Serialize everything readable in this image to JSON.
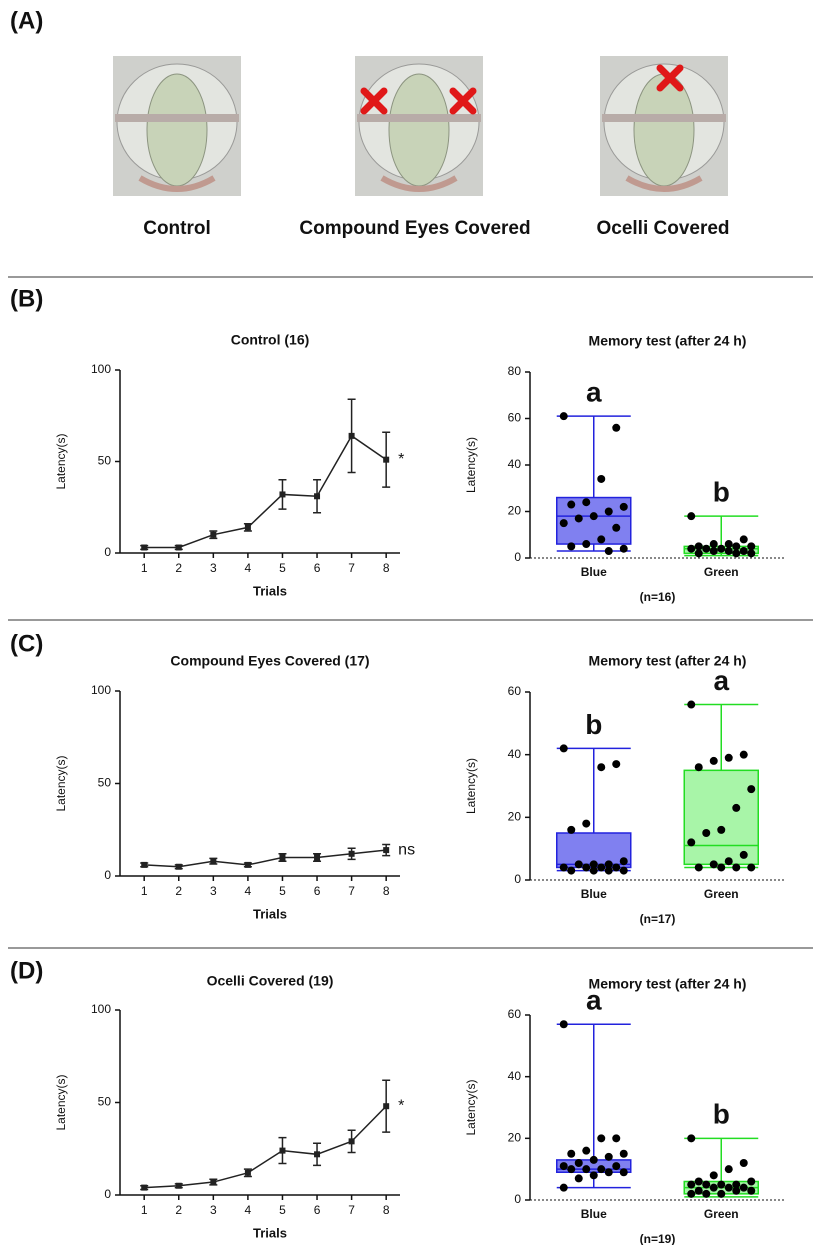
{
  "panel_labels": [
    "(A)",
    "(B)",
    "(C)",
    "(D)"
  ],
  "head_captions": [
    "Control",
    "Compound Eyes Covered",
    "Ocelli Covered"
  ],
  "chart_data": [
    {
      "type": "line",
      "title": "Control (16)",
      "xlabel": "Trials",
      "ylabel": "Latency(s)",
      "x": [
        1,
        2,
        3,
        4,
        5,
        6,
        7,
        8
      ],
      "xticks": [
        1,
        2,
        3,
        4,
        5,
        6,
        7,
        8
      ],
      "xlim": [
        0.3,
        8.4
      ],
      "ylim": [
        0,
        100
      ],
      "yticks": [
        0,
        50,
        100
      ],
      "series": [
        {
          "color": "#222222",
          "values": [
            3,
            3,
            10,
            14,
            32,
            31,
            64,
            51
          ],
          "errors": [
            1,
            1,
            2,
            2,
            8,
            9,
            20,
            15
          ]
        }
      ],
      "annotation": "*"
    },
    {
      "type": "box",
      "title": "Memory test (after 24 h)",
      "ylabel": "Latency(s)",
      "categories": [
        "Blue",
        "Green"
      ],
      "ylim": [
        0,
        80
      ],
      "yticks": [
        0,
        20,
        40,
        60,
        80
      ],
      "boxes": [
        {
          "color": "#2222dd",
          "fill": "#8080f0",
          "min": 3,
          "q1": 6,
          "median": 18,
          "q3": 26,
          "max": 61,
          "points": [
            61,
            56,
            34,
            24,
            23,
            22,
            20,
            18,
            17,
            15,
            13,
            8,
            6,
            5,
            4,
            3
          ]
        },
        {
          "color": "#22dd22",
          "fill": "#a8f5a8",
          "min": 1,
          "q1": 2,
          "median": 4,
          "q3": 5,
          "max": 18,
          "points": [
            18,
            8,
            6,
            6,
            5,
            5,
            5,
            4,
            4,
            4,
            3,
            3,
            3,
            2,
            2,
            2
          ]
        }
      ],
      "letters": [
        "a",
        "b"
      ],
      "note": "(n=16)"
    },
    {
      "type": "line",
      "title": "Compound Eyes Covered (17)",
      "xlabel": "Trials",
      "ylabel": "Latency(s)",
      "x": [
        1,
        2,
        3,
        4,
        5,
        6,
        7,
        8
      ],
      "xticks": [
        1,
        2,
        3,
        4,
        5,
        6,
        7,
        8
      ],
      "xlim": [
        0.3,
        8.4
      ],
      "ylim": [
        0,
        100
      ],
      "yticks": [
        0,
        50,
        100
      ],
      "series": [
        {
          "color": "#222222",
          "values": [
            6,
            5,
            8,
            6,
            10,
            10,
            12,
            14
          ],
          "errors": [
            1,
            1,
            1.5,
            1,
            2,
            2,
            3,
            3
          ]
        }
      ],
      "annotation": "ns"
    },
    {
      "type": "box",
      "title": "Memory test (after 24 h)",
      "ylabel": "Latency(s)",
      "categories": [
        "Blue",
        "Green"
      ],
      "ylim": [
        0,
        60
      ],
      "yticks": [
        0,
        20,
        40,
        60
      ],
      "boxes": [
        {
          "color": "#2222dd",
          "fill": "#8080f0",
          "min": 3,
          "q1": 4,
          "median": 5,
          "q3": 15,
          "max": 42,
          "points": [
            42,
            37,
            36,
            18,
            16,
            6,
            5,
            5,
            5,
            4,
            4,
            4,
            4,
            3,
            3,
            3,
            3
          ]
        },
        {
          "color": "#22dd22",
          "fill": "#a8f5a8",
          "min": 4,
          "q1": 5,
          "median": 11,
          "q3": 35,
          "max": 56,
          "points": [
            56,
            40,
            39,
            38,
            36,
            29,
            23,
            16,
            15,
            12,
            8,
            6,
            5,
            4,
            4,
            4,
            4
          ]
        }
      ],
      "letters": [
        "b",
        "a"
      ],
      "note": "(n=17)"
    },
    {
      "type": "line",
      "title": "Ocelli Covered (19)",
      "xlabel": "Trials",
      "ylabel": "Latency(s)",
      "x": [
        1,
        2,
        3,
        4,
        5,
        6,
        7,
        8
      ],
      "xticks": [
        1,
        2,
        3,
        4,
        5,
        6,
        7,
        8
      ],
      "xlim": [
        0.3,
        8.4
      ],
      "ylim": [
        0,
        100
      ],
      "yticks": [
        0,
        50,
        100
      ],
      "series": [
        {
          "color": "#222222",
          "values": [
            4,
            5,
            7,
            12,
            24,
            22,
            29,
            48
          ],
          "errors": [
            1,
            1,
            1.5,
            2,
            7,
            6,
            6,
            14
          ]
        }
      ],
      "annotation": "*"
    },
    {
      "type": "box",
      "title": "Memory test (after 24 h)",
      "ylabel": "Latency(s)",
      "categories": [
        "Blue",
        "Green"
      ],
      "ylim": [
        0,
        60
      ],
      "yticks": [
        0,
        20,
        40,
        60
      ],
      "boxes": [
        {
          "color": "#2222dd",
          "fill": "#8080f0",
          "min": 4,
          "q1": 9,
          "median": 10,
          "q3": 13,
          "max": 57,
          "points": [
            57,
            20,
            20,
            16,
            15,
            15,
            14,
            13,
            12,
            11,
            11,
            10,
            10,
            10,
            9,
            9,
            8,
            7,
            4
          ]
        },
        {
          "color": "#22dd22",
          "fill": "#a8f5a8",
          "min": 1,
          "q1": 2,
          "median": 4,
          "q3": 6,
          "max": 20,
          "points": [
            20,
            12,
            10,
            8,
            6,
            6,
            5,
            5,
            5,
            5,
            4,
            4,
            4,
            3,
            3,
            3,
            2,
            2,
            2
          ]
        }
      ],
      "letters": [
        "a",
        "b"
      ],
      "note": "(n=19)"
    }
  ]
}
